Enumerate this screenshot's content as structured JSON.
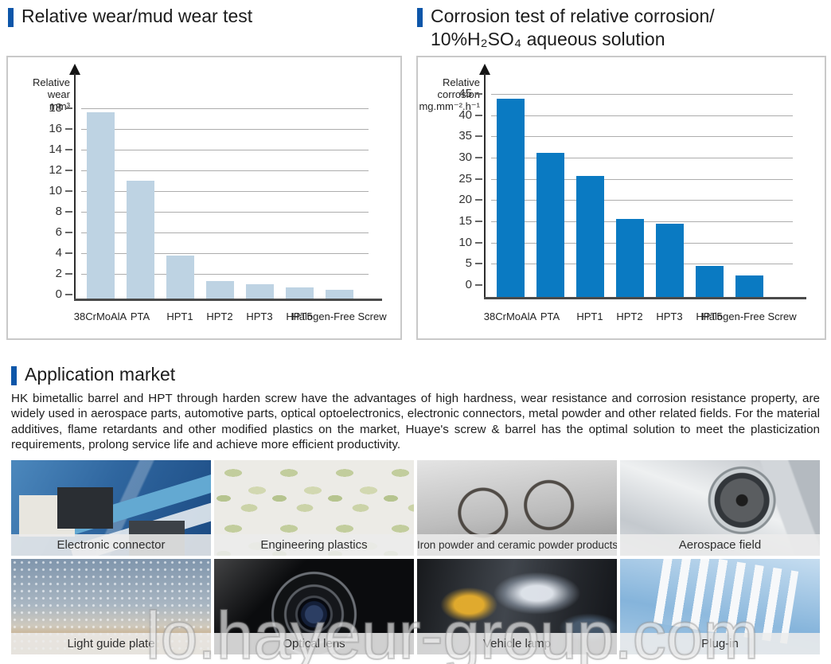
{
  "sections": {
    "wear": {
      "title": "Relative wear/mud wear test"
    },
    "corrosion": {
      "title_line1": "Corrosion test of relative corrosion/",
      "title_line2": "10%H₂SO₄ aqueous solution"
    },
    "application": {
      "title": "Application market",
      "paragraph": "HK bimetallic barrel and HPT through harden screw have the advantages of high hardness, wear resistance and corrosion resistance property, are widely used in aerospace parts, automotive parts, optical optoelectronics, electronic connectors, metal powder and other related fields. For the material additives, flame retardants and other modified plastics on the market, Huaye's screw & barrel has the optimal solution to meet the plasticization requirements, prolong service life and achieve more efficient productivity."
    }
  },
  "chart_data": [
    {
      "id": "wear",
      "type": "bar",
      "title": "Relative wear/mud wear test",
      "ylabel_lines": [
        "Relative wear",
        "mm³"
      ],
      "categories": [
        "38CrMoAlA",
        "PTA",
        "HPT1",
        "HPT2",
        "HPT3",
        "HPT5",
        "Halogen-Free Screw"
      ],
      "values": [
        17.6,
        11,
        3.8,
        1.3,
        1.0,
        0.7,
        0.5
      ],
      "ylim": [
        0,
        18
      ],
      "ytick_step": 2,
      "bar_color": "#bed3e3",
      "grid": true,
      "legend": "none"
    },
    {
      "id": "corrosion",
      "type": "bar",
      "title": "Corrosion test of relative corrosion/10%H₂SO₄ aqueous solution",
      "ylabel_lines": [
        "Relative corrosion",
        "mg.mm⁻².h⁻¹"
      ],
      "categories": [
        "38CrMoAlA",
        "PTA",
        "HPT1",
        "HPT2",
        "HPT3",
        "HPT5",
        "Halogen-Free Screw"
      ],
      "values": [
        43.8,
        31.2,
        25.6,
        15.5,
        14.4,
        4.5,
        2.2
      ],
      "ylim": [
        0,
        45
      ],
      "ytick_step": 5,
      "bar_color": "#0a7ac2",
      "grid": true,
      "legend": "none"
    }
  ],
  "tiles": [
    {
      "id": "electronic-connector",
      "label": "Electronic connector"
    },
    {
      "id": "engineering-plastics",
      "label": "Engineering plastics"
    },
    {
      "id": "iron-powder-ceramic",
      "label": "Iron powder and ceramic powder products"
    },
    {
      "id": "aerospace-field",
      "label": "Aerospace field"
    },
    {
      "id": "light-guide-plate",
      "label": "Light guide plate"
    },
    {
      "id": "optical-lens",
      "label": "Optical lens"
    },
    {
      "id": "vehicle-lamp",
      "label": "Vehicle lamp"
    },
    {
      "id": "plug-in",
      "label": "Plug-in"
    }
  ],
  "watermark": {
    "text": "lo.hayeur-group.com"
  },
  "colors": {
    "accent": "#0d56a9",
    "wear_bar": "#bed3e3",
    "corrosion_bar": "#0a7ac2",
    "panel_border": "#c9c9c9",
    "grid_line": "#adadad"
  }
}
